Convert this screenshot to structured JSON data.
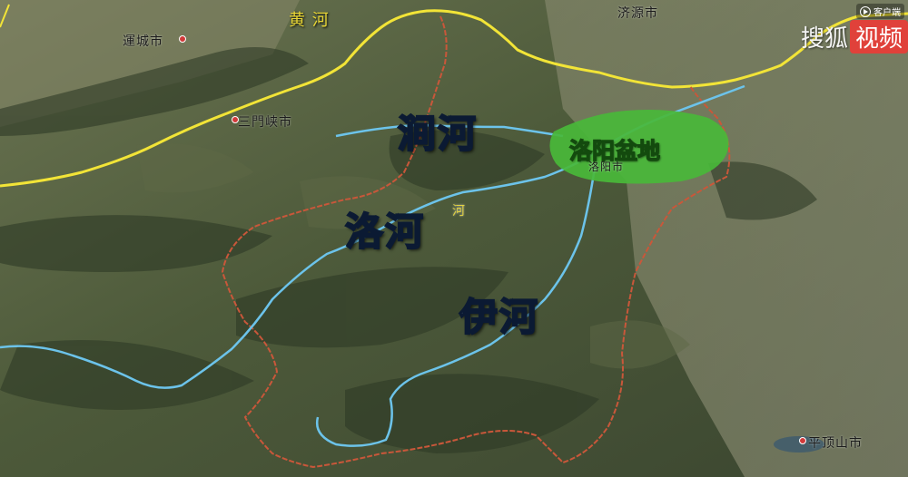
{
  "map_labels": {
    "yellow_river": "黄 河",
    "jiyuan": "济源市",
    "yuncheng": "運城市",
    "sanmenxia": "三門峡市",
    "luoyang_small": "洛阳市",
    "pingdingshan": "平顶山市",
    "luohe_small": "河"
  },
  "river_labels": {
    "jian": "涧河",
    "luo": "洛河",
    "yi": "伊河"
  },
  "basin_label": "洛阳盆地",
  "watermark": {
    "brand": "搜狐",
    "tag": "视频",
    "client": "客户端"
  },
  "colors": {
    "yellow_river": "#f2e437",
    "rivers": "#6cc3ea",
    "boundary": "#c9573a",
    "basin": "#49b83a"
  }
}
